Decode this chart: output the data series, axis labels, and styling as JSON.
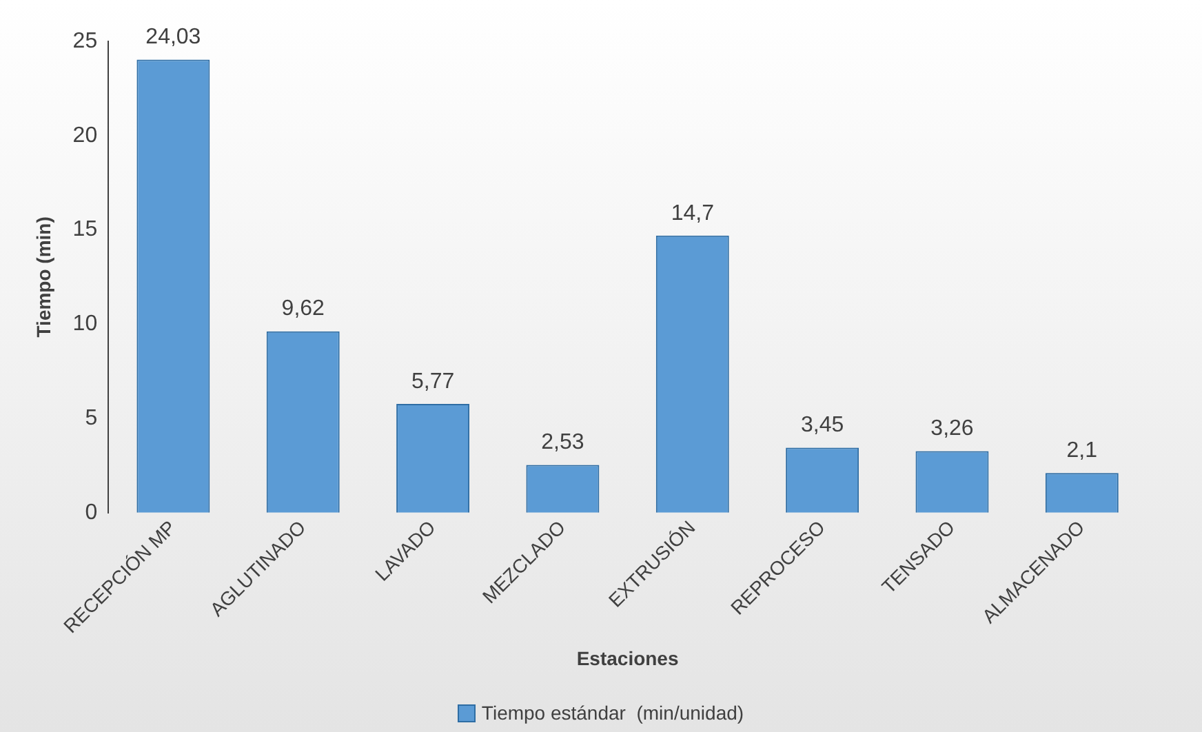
{
  "chart_data": {
    "type": "bar",
    "xlabel": "Estaciones",
    "ylabel": "Tiempo (min)",
    "categories": [
      "RECEPCIÓN MP",
      "AGLUTINADO",
      "LAVADO",
      "MEZCLADO",
      "EXTRUSIÓN",
      "REPROCESO",
      "TENSADO",
      "ALMACENADO"
    ],
    "series": [
      {
        "name": "Tiempo estándar  (min/unidad)",
        "color": "#5b9bd5",
        "values": [
          24.03,
          9.62,
          5.77,
          2.53,
          14.7,
          3.45,
          3.26,
          2.1
        ],
        "value_labels": [
          "24,03",
          "9,62",
          "5,77",
          "2,53",
          "14,7",
          "3,45",
          "3,26",
          "2,1"
        ]
      }
    ],
    "ylim": [
      0,
      25
    ],
    "yticks": [
      0,
      5,
      10,
      15,
      20,
      25
    ],
    "grid": false,
    "legend": "bottom"
  }
}
